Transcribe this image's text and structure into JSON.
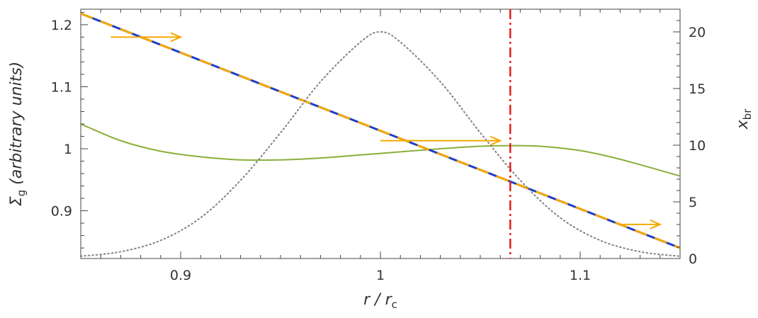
{
  "chart_data": {
    "type": "line",
    "x_axis": {
      "label_main": "r / r",
      "label_sub": "c",
      "range": [
        0.85,
        1.15
      ],
      "ticks": [
        0.9,
        1.0,
        1.1
      ],
      "tick_labels": [
        "0.9",
        "1",
        "1.1"
      ]
    },
    "y_axis_left": {
      "label_main": "Σ",
      "label_sub": "g",
      "label_rest": " (arbitrary units)",
      "range": [
        0.823,
        1.225
      ],
      "ticks": [
        0.9,
        1.0,
        1.1,
        1.2
      ],
      "tick_labels": [
        "0.9",
        "1",
        "1.1",
        "1.2"
      ]
    },
    "y_axis_right": {
      "label_main": "x",
      "label_sub": "br",
      "range": [
        0,
        22
      ],
      "ticks": [
        0,
        5,
        10,
        15,
        20
      ],
      "tick_labels": [
        "0",
        "5",
        "10",
        "15",
        "20"
      ]
    },
    "grid": false,
    "series": [
      {
        "style": "solid",
        "color": "#8aaf3a",
        "axis": "left",
        "x": [
          0.85,
          0.87,
          0.89,
          0.91,
          0.93,
          0.95,
          0.97,
          0.99,
          1.01,
          1.03,
          1.05,
          1.065,
          1.08,
          1.1,
          1.12,
          1.15
        ],
        "y": [
          1.04,
          1.013,
          0.996,
          0.987,
          0.982,
          0.982,
          0.985,
          0.99,
          0.995,
          1.0,
          1.004,
          1.005,
          1.004,
          0.997,
          0.983,
          0.956
        ]
      },
      {
        "style": "dashed-overlay",
        "color": "#1f3ec7",
        "overlay_color": "#f5a800",
        "axis": "left",
        "x": [
          0.85,
          1.15
        ],
        "y": [
          1.218,
          0.84
        ]
      },
      {
        "style": "dotted",
        "color": "#808080",
        "axis": "right",
        "x": [
          0.85,
          0.87,
          0.89,
          0.91,
          0.93,
          0.95,
          0.97,
          0.99,
          1.0,
          1.01,
          1.03,
          1.05,
          1.07,
          1.09,
          1.11,
          1.13,
          1.15
        ],
        "y": [
          0.2,
          0.6,
          1.6,
          3.6,
          6.9,
          11.1,
          15.6,
          19.1,
          20.0,
          19.1,
          15.6,
          11.1,
          6.9,
          3.6,
          1.6,
          0.6,
          0.2
        ]
      }
    ],
    "vertical_line": {
      "x": 1.065,
      "color": "#e0201b",
      "style": "dash-dot"
    },
    "arrows": [
      {
        "x_from": 0.865,
        "x_to": 0.9,
        "y": 1.18,
        "color": "#f5a800"
      },
      {
        "x_from": 1.0,
        "x_to": 1.06,
        "y": 1.013,
        "color": "#f5a800"
      },
      {
        "x_from": 1.12,
        "x_to": 1.14,
        "y": 0.878,
        "color": "#f5a800"
      }
    ]
  }
}
